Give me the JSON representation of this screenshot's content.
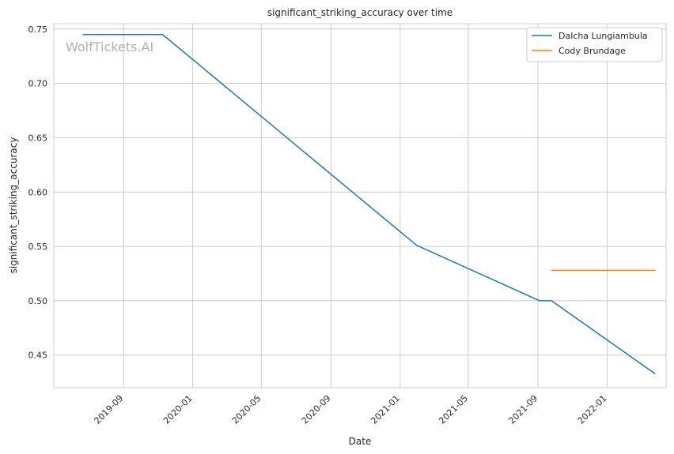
{
  "chart_data": {
    "type": "line",
    "title": "significant_striking_accuracy over time",
    "xlabel": "Date",
    "ylabel": "significant_striking_accuracy",
    "watermark": "WolfTickets.AI",
    "grid": true,
    "legend_position": "top-right",
    "xlim": [
      "2019-05-01",
      "2022-04-15"
    ],
    "ylim": [
      0.42,
      0.755
    ],
    "x_ticks": [
      "2019-09",
      "2020-01",
      "2020-05",
      "2020-09",
      "2021-01",
      "2021-05",
      "2021-09",
      "2022-01"
    ],
    "y_ticks": [
      "0.45",
      "0.50",
      "0.55",
      "0.60",
      "0.65",
      "0.70",
      "0.75"
    ],
    "series": [
      {
        "name": "Dalcha Lungiambula",
        "color": "#1f77b4",
        "points": [
          {
            "x": "2019-06-22",
            "y": 0.745
          },
          {
            "x": "2019-11-09",
            "y": 0.745
          },
          {
            "x": "2021-01-30",
            "y": 0.551
          },
          {
            "x": "2021-09-04",
            "y": 0.5
          },
          {
            "x": "2021-09-25",
            "y": 0.5
          },
          {
            "x": "2022-03-26",
            "y": 0.433
          }
        ]
      },
      {
        "name": "Cody Brundage",
        "color": "#ff7f0e",
        "points": [
          {
            "x": "2021-09-25",
            "y": 0.528
          },
          {
            "x": "2022-03-26",
            "y": 0.528
          }
        ]
      }
    ]
  }
}
